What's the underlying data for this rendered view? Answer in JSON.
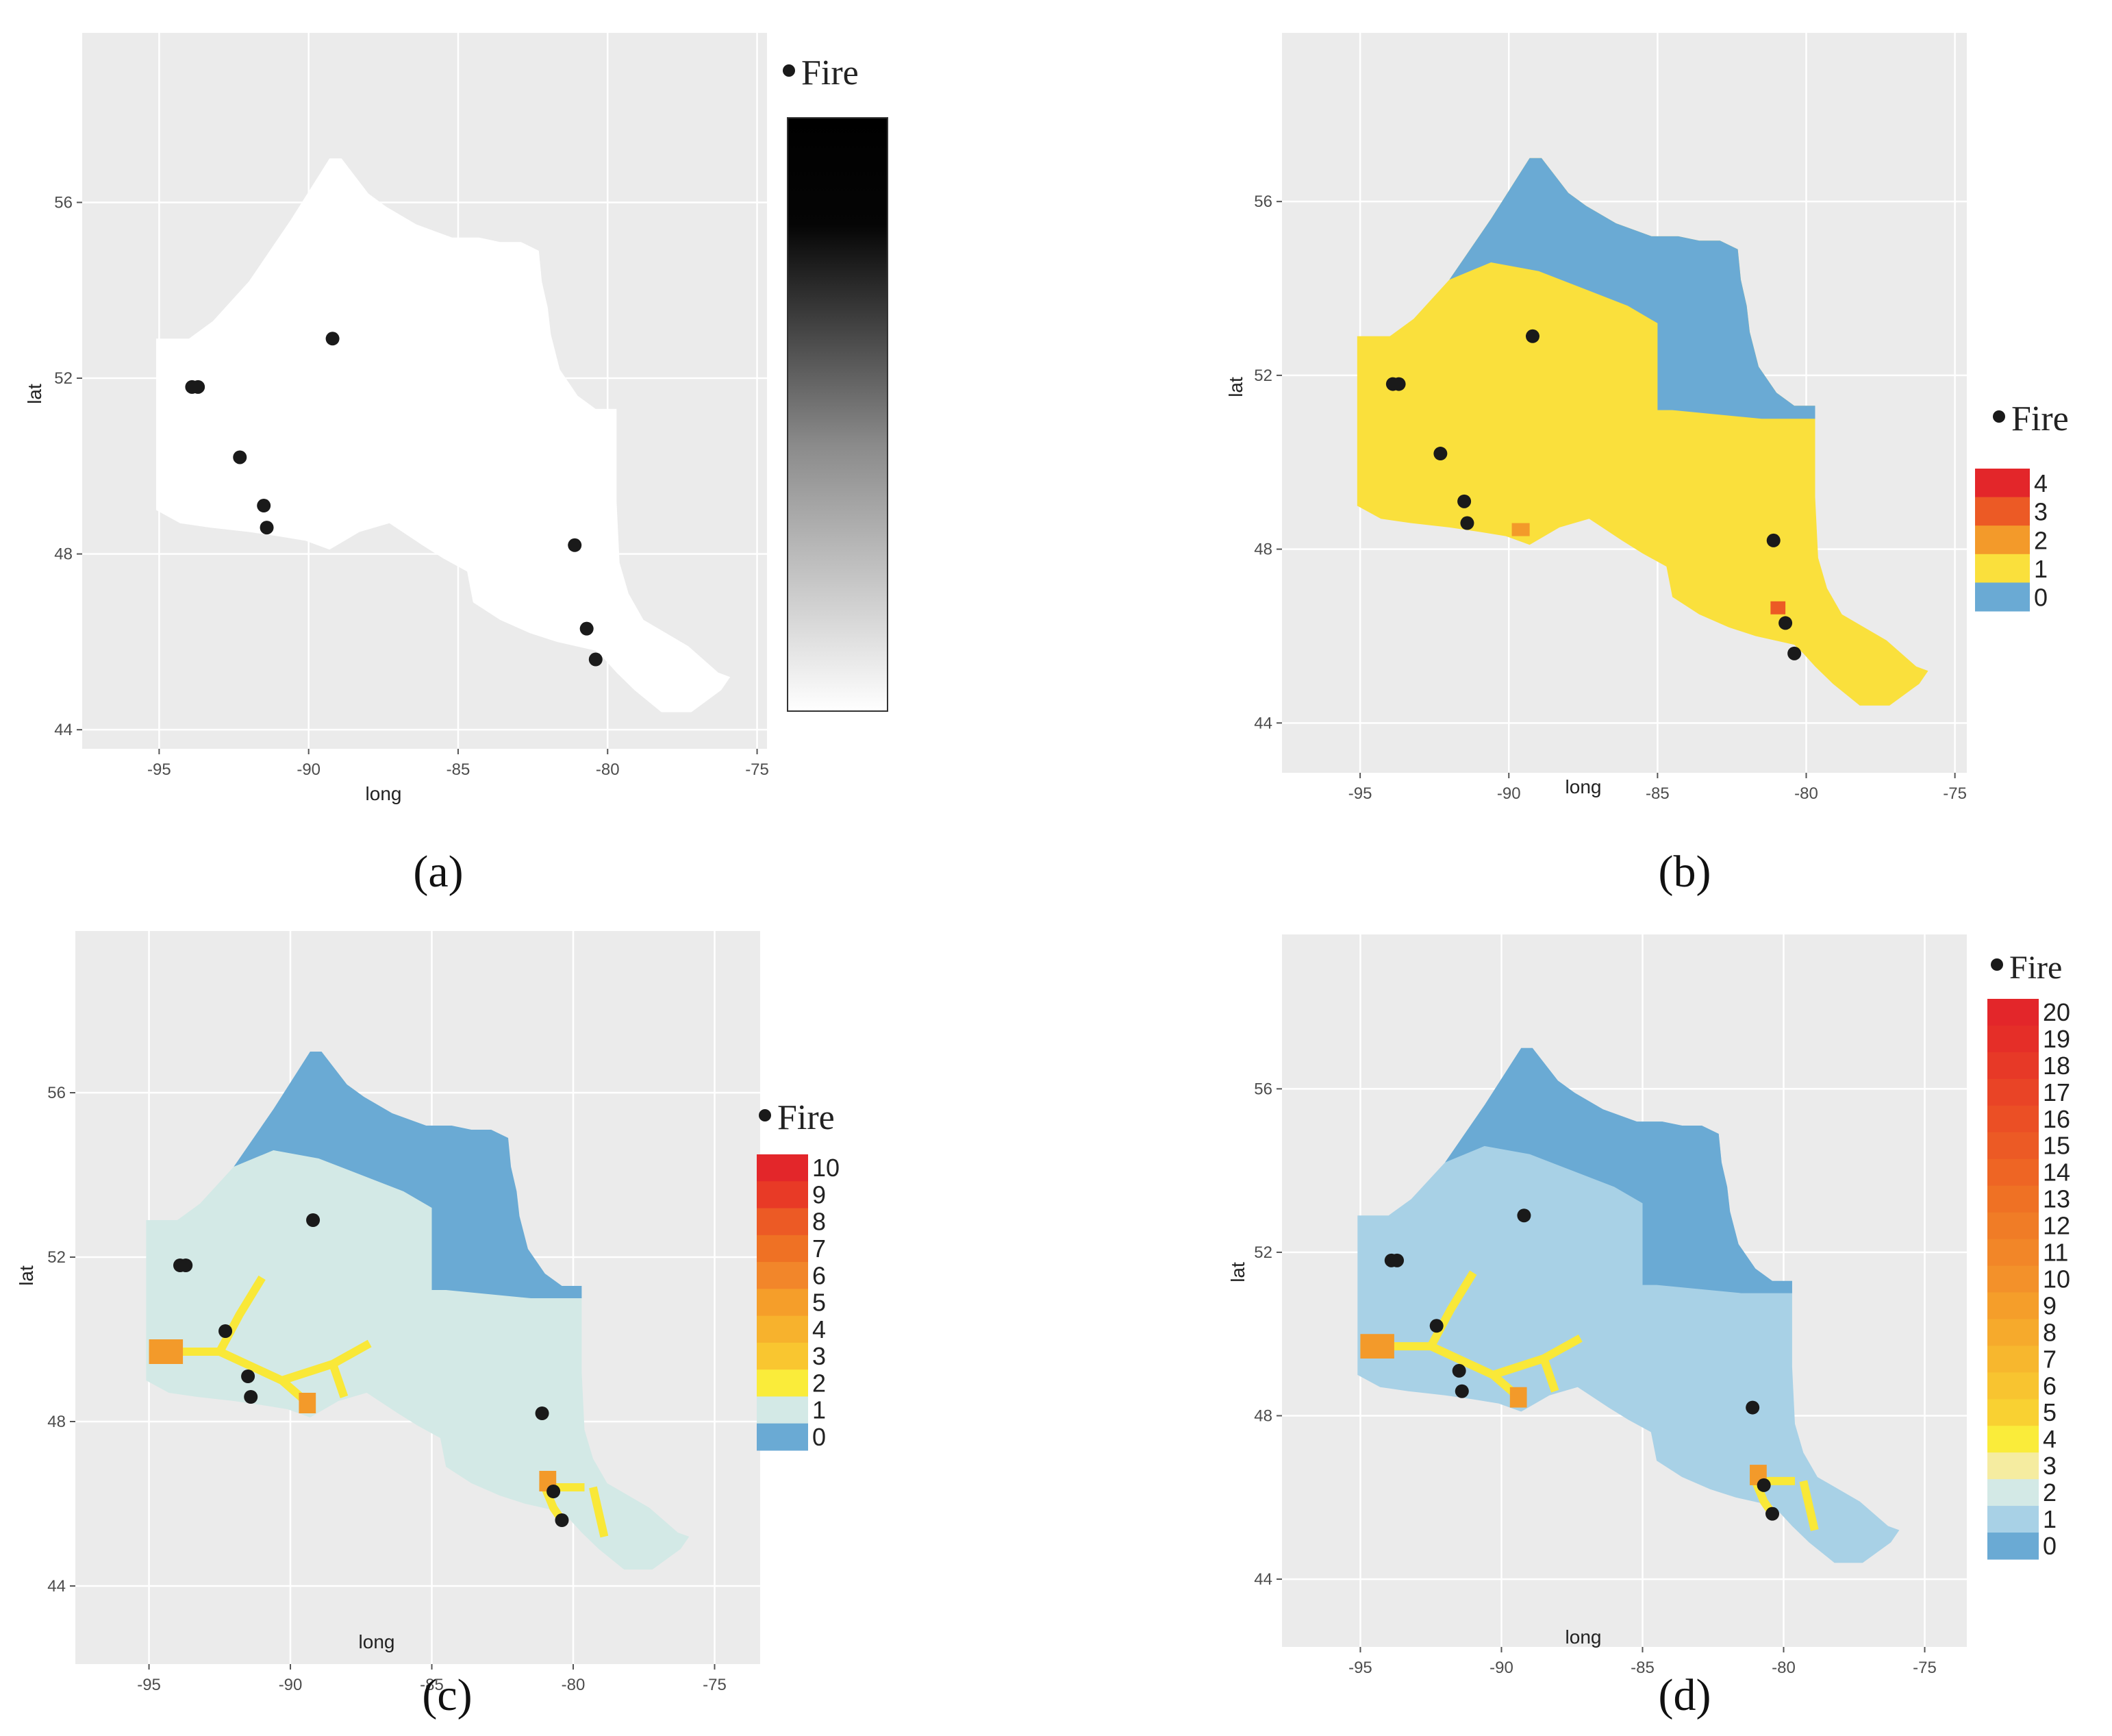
{
  "axes": {
    "xlabel": "long",
    "ylabel": "lat",
    "xticks": [
      -95,
      -90,
      -85,
      -80,
      -75
    ],
    "yticks": [
      44,
      48,
      52,
      56
    ],
    "xlim": [
      -96.2,
      -74.6
    ],
    "ylim": [
      43.8,
      57.8
    ]
  },
  "colors": {
    "panel_bg": "#ebebeb",
    "grid": "#ffffff",
    "fire_point": "#1a1a1a",
    "region_a": "#ffffff",
    "class0": "#6aaad4",
    "class1_b": "#fae03c",
    "class1_c": "#d3e9e6",
    "class1_d": "#a8d1e6",
    "class2_d": "#d3e9e6",
    "yellow": "#f9e838",
    "orange": "#f39a2a",
    "red": "#e3262a"
  },
  "fire_points": [
    {
      "long": -93.9,
      "lat": 51.8
    },
    {
      "long": -93.7,
      "lat": 51.8
    },
    {
      "long": -89.2,
      "lat": 52.9
    },
    {
      "long": -92.3,
      "lat": 50.2
    },
    {
      "long": -91.5,
      "lat": 49.1
    },
    {
      "long": -91.4,
      "lat": 48.6
    },
    {
      "long": -81.1,
      "lat": 48.2
    },
    {
      "long": -80.7,
      "lat": 46.3
    },
    {
      "long": -80.4,
      "lat": 45.6
    }
  ],
  "panels": [
    {
      "id": "a",
      "caption": "(a)",
      "legend_title": "Fire",
      "legend_type": "gradient",
      "gradient_stops": [
        {
          "offset": 0,
          "color": "#000000"
        },
        {
          "offset": 0.18,
          "color": "#050505"
        },
        {
          "offset": 0.55,
          "color": "#8a8a8a"
        },
        {
          "offset": 1,
          "color": "#ffffff"
        }
      ],
      "legend_labels": []
    },
    {
      "id": "b",
      "caption": "(b)",
      "legend_title": "Fire",
      "legend_type": "discrete",
      "legend_labels": [
        "4",
        "3",
        "2",
        "1",
        "0"
      ],
      "legend_colors": [
        "#e3262a",
        "#ec5a25",
        "#f39a2a",
        "#fae03c",
        "#6aaad4"
      ]
    },
    {
      "id": "c",
      "caption": "(c)",
      "legend_title": "Fire",
      "legend_type": "discrete",
      "legend_labels": [
        "10",
        "9",
        "8",
        "7",
        "6",
        "5",
        "4",
        "3",
        "2",
        "1",
        "0"
      ],
      "legend_colors": [
        "#e3262a",
        "#e83a26",
        "#ec5a25",
        "#ef7124",
        "#f2862a",
        "#f59e2a",
        "#f7b22d",
        "#f9c630",
        "#faec3a",
        "#d3e9e6",
        "#6aaad4"
      ]
    },
    {
      "id": "d",
      "caption": "(d)",
      "legend_title": "Fire",
      "legend_type": "discrete",
      "legend_labels": [
        "20",
        "19",
        "18",
        "17",
        "16",
        "15",
        "14",
        "13",
        "12",
        "11",
        "10",
        "9",
        "8",
        "7",
        "6",
        "5",
        "4",
        "3",
        "2",
        "1",
        "0"
      ],
      "legend_colors": [
        "#e3262a",
        "#e52e28",
        "#e73927",
        "#e94426",
        "#eb4f25",
        "#ec5a25",
        "#ee6524",
        "#ef7124",
        "#f07c26",
        "#f28628",
        "#f3912a",
        "#f59e2a",
        "#f6aa2c",
        "#f7b72e",
        "#f8c430",
        "#f9d132",
        "#faec3a",
        "#f5eca0",
        "#d3e9e6",
        "#a8d1e6",
        "#6aaad4"
      ]
    }
  ]
}
